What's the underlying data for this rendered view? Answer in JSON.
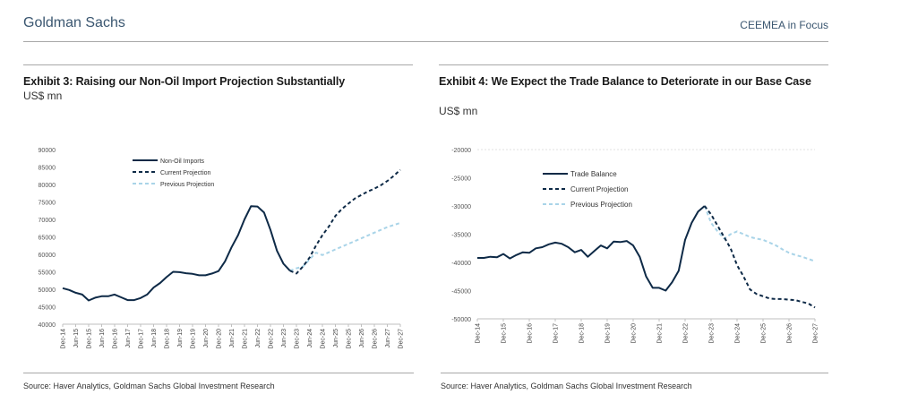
{
  "header": {
    "brand": "Goldman Sachs",
    "section": "CEEMEA in Focus"
  },
  "colors": {
    "actual": "#0e2a47",
    "current": "#0e2a47",
    "previous": "#a9d4e8",
    "brand": "#3a5670"
  },
  "chart_data": [
    {
      "type": "line",
      "title": "Exhibit 3: Raising our Non-Oil Import Projection Substantially",
      "ylabel": "US$ mn",
      "source": "Source: Haver Analytics, Goldman Sachs Global Investment Research",
      "frequency": "quarterly",
      "start": "Dec-14",
      "ylim": [
        40000,
        90000
      ],
      "yticks": [
        "90000",
        "85000",
        "80000",
        "75000",
        "70000",
        "65000",
        "60000",
        "55000",
        "50000",
        "45000",
        "40000"
      ],
      "xticks": [
        "Dec-14",
        "Jun-15",
        "Dec-15",
        "Jun-16",
        "Dec-16",
        "Jun-17",
        "Dec-17",
        "Jun-18",
        "Dec-18",
        "Jun-19",
        "Dec-19",
        "Jun-20",
        "Dec-20",
        "Jun-21",
        "Dec-21",
        "Jun-22",
        "Dec-22",
        "Jun-23",
        "Dec-23",
        "Jun-24",
        "Dec-24",
        "Jun-25",
        "Dec-25",
        "Jun-26",
        "Dec-26",
        "Jun-27",
        "Dec-27"
      ],
      "xtick_step_quarters": 2,
      "legend_position": "top-left",
      "series": [
        {
          "name": "Non-Oil Imports",
          "style": "solid",
          "start_index": 0,
          "values": [
            50300,
            49800,
            49000,
            48500,
            46800,
            47600,
            48000,
            48000,
            48500,
            47700,
            46900,
            46900,
            47500,
            48500,
            50500,
            51800,
            53500,
            55000,
            54900,
            54600,
            54400,
            54000,
            54000,
            54500,
            55200,
            58000,
            62000,
            65500,
            70000,
            73800,
            73700,
            72000,
            67000,
            61000,
            57300,
            55300
          ]
        },
        {
          "name": "Current Projection",
          "style": "dashed",
          "start_index": 35,
          "values": [
            55300,
            54500,
            56500,
            59000,
            62500,
            65500,
            68000,
            71000,
            73000,
            74500,
            76000,
            77000,
            78000,
            78800,
            79800,
            81000,
            82500,
            84200
          ]
        },
        {
          "name": "Previous Projection",
          "style": "dashed-light",
          "start_index": 35,
          "values": [
            55300,
            56000,
            56500,
            58500,
            60500,
            59800,
            60600,
            61400,
            62200,
            63000,
            63800,
            64600,
            65400,
            66200,
            67000,
            67800,
            68400,
            69000
          ]
        }
      ]
    },
    {
      "type": "line",
      "title": "Exhibit 4: We Expect the Trade Balance to Deteriorate in our Base Case",
      "ylabel": "US$ mn",
      "source": "Source: Haver Analytics, Goldman Sachs Global Investment Research",
      "frequency": "quarterly",
      "start": "Dec-14",
      "ylim": [
        -50000,
        -20000
      ],
      "yticks": [
        "-20000",
        "-25000",
        "-30000",
        "-35000",
        "-40000",
        "-45000",
        "-50000"
      ],
      "xticks": [
        "Dec-14",
        "Dec-15",
        "Dec-16",
        "Dec-17",
        "Dec-18",
        "Dec-19",
        "Dec-20",
        "Dec-21",
        "Dec-22",
        "Dec-23",
        "Dec-24",
        "Dec-25",
        "Dec-26",
        "Dec-27"
      ],
      "xtick_step_quarters": 4,
      "legend_position": "top-left",
      "series": [
        {
          "name": "Trade Balance",
          "style": "solid",
          "start_index": 0,
          "values": [
            -39200,
            -39200,
            -39000,
            -39100,
            -38500,
            -39300,
            -38700,
            -38200,
            -38300,
            -37500,
            -37300,
            -36800,
            -36500,
            -36700,
            -37300,
            -38200,
            -37800,
            -39000,
            -38000,
            -37000,
            -37500,
            -36300,
            -36400,
            -36200,
            -37000,
            -39000,
            -42500,
            -44500,
            -44500,
            -45000,
            -43500,
            -41500,
            -36000,
            -33000,
            -31000,
            -30000
          ]
        },
        {
          "name": "Current Projection",
          "style": "dashed",
          "start_index": 35,
          "values": [
            -30000,
            -31500,
            -33500,
            -35500,
            -37500,
            -40500,
            -42500,
            -44800,
            -45600,
            -46000,
            -46400,
            -46500,
            -46500,
            -46600,
            -46700,
            -47000,
            -47300,
            -48000
          ]
        },
        {
          "name": "Previous Projection",
          "style": "dashed-light",
          "start_index": 35,
          "values": [
            -30000,
            -33000,
            -34500,
            -35800,
            -35000,
            -34500,
            -35000,
            -35500,
            -35800,
            -36000,
            -36500,
            -37000,
            -37700,
            -38300,
            -38700,
            -39000,
            -39400,
            -39800
          ]
        }
      ]
    }
  ]
}
